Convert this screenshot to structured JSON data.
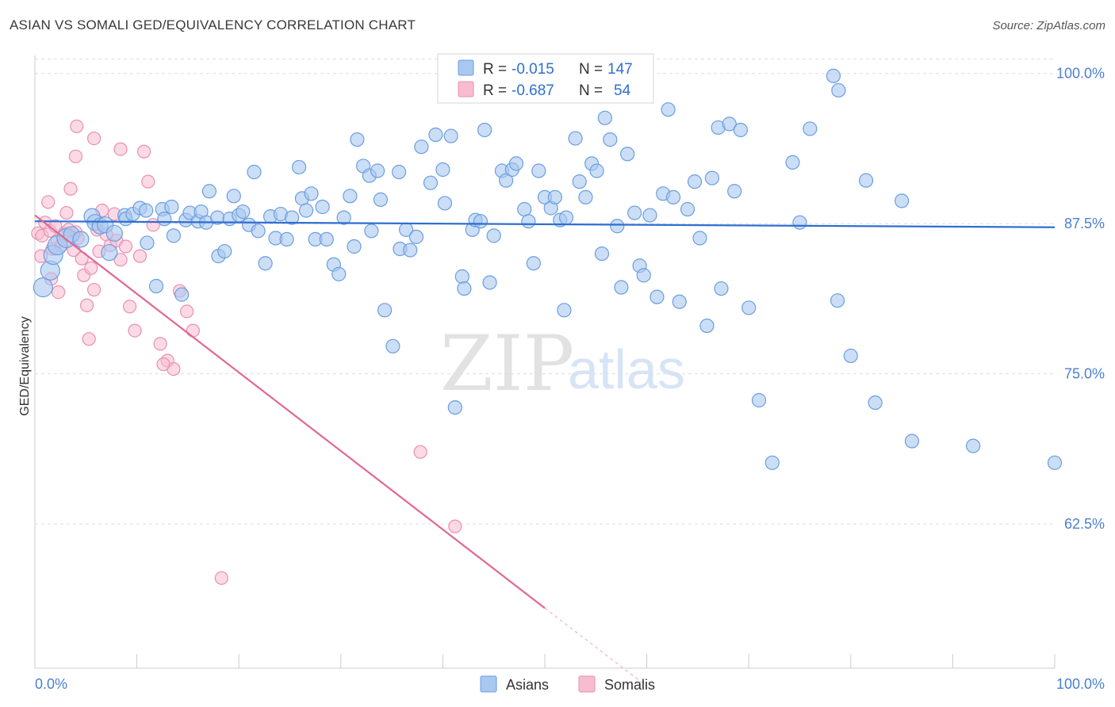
{
  "title": "ASIAN VS SOMALI GED/EQUIVALENCY CORRELATION CHART",
  "source": "Source: ZipAtlas.com",
  "watermark": {
    "zip": "ZIP",
    "atlas": "atlas"
  },
  "colors": {
    "asian_fill": "#a9c8f0",
    "asian_stroke": "#6b9ee0",
    "asian_line": "#2f6fd0",
    "somali_fill": "#f7bcd0",
    "somali_stroke": "#ea8fb0",
    "somali_line": "#e26694",
    "grid": "#dddddd",
    "axis_text": "#4a7fd4"
  },
  "legend": {
    "asian": {
      "r_label": "R =",
      "r_value": "-0.015",
      "n_label": "N =",
      "n_value": "147"
    },
    "somali": {
      "r_label": "R =",
      "r_value": "-0.687",
      "n_label": "N =",
      "n_value": "54"
    }
  },
  "chart_data": {
    "type": "scatter",
    "title": "ASIAN VS SOMALI GED/EQUIVALENCY CORRELATION CHART",
    "xlabel": "",
    "ylabel": "GED/Equivalency",
    "xlim": [
      0,
      100
    ],
    "ylim": [
      50.5,
      101.5
    ],
    "x_tick_labels": [
      "0.0%",
      "100.0%"
    ],
    "y_ticks": [
      62.5,
      75.0,
      87.5,
      100.0
    ],
    "y_tick_labels": [
      "62.5%",
      "75.0%",
      "87.5%",
      "100.0%"
    ],
    "grid": true,
    "legend_position": "top-center",
    "series": [
      {
        "name": "Asians",
        "color": "#a9c8f0",
        "trend": {
          "x": [
            0,
            100
          ],
          "y": [
            87.7,
            87.2
          ]
        },
        "points": [
          [
            0.8,
            82.2
          ],
          [
            1.5,
            83.6
          ],
          [
            1.8,
            84.9
          ],
          [
            2.2,
            85.7
          ],
          [
            3.1,
            86.3
          ],
          [
            3.6,
            86.6
          ],
          [
            4.5,
            86.2
          ],
          [
            5.6,
            88.1
          ],
          [
            5.9,
            87.6
          ],
          [
            6.4,
            87.3
          ],
          [
            6.9,
            87.4
          ],
          [
            7.3,
            85.1
          ],
          [
            7.8,
            86.7
          ],
          [
            8.8,
            88.2
          ],
          [
            8.9,
            87.9
          ],
          [
            9.6,
            88.3
          ],
          [
            10.3,
            88.8
          ],
          [
            10.9,
            88.6
          ],
          [
            11.0,
            85.9
          ],
          [
            11.9,
            82.3
          ],
          [
            12.5,
            88.7
          ],
          [
            12.7,
            87.9
          ],
          [
            13.4,
            88.9
          ],
          [
            13.6,
            86.5
          ],
          [
            14.4,
            81.6
          ],
          [
            14.8,
            87.8
          ],
          [
            15.2,
            88.4
          ],
          [
            16.0,
            87.7
          ],
          [
            16.3,
            88.5
          ],
          [
            16.8,
            87.6
          ],
          [
            17.1,
            90.2
          ],
          [
            17.9,
            88.0
          ],
          [
            18.0,
            84.8
          ],
          [
            18.6,
            85.2
          ],
          [
            19.1,
            87.9
          ],
          [
            19.5,
            89.8
          ],
          [
            20.0,
            88.2
          ],
          [
            20.4,
            88.5
          ],
          [
            21.0,
            87.4
          ],
          [
            21.5,
            91.8
          ],
          [
            21.9,
            86.9
          ],
          [
            22.6,
            84.2
          ],
          [
            23.1,
            88.1
          ],
          [
            23.6,
            86.3
          ],
          [
            24.1,
            88.3
          ],
          [
            24.7,
            86.2
          ],
          [
            25.2,
            88.0
          ],
          [
            25.9,
            92.2
          ],
          [
            26.2,
            89.6
          ],
          [
            26.6,
            88.6
          ],
          [
            27.1,
            90.0
          ],
          [
            27.5,
            86.2
          ],
          [
            28.2,
            88.9
          ],
          [
            28.6,
            86.2
          ],
          [
            29.3,
            84.1
          ],
          [
            29.8,
            83.3
          ],
          [
            30.3,
            88.0
          ],
          [
            30.9,
            89.8
          ],
          [
            31.3,
            85.6
          ],
          [
            31.6,
            94.5
          ],
          [
            32.2,
            92.3
          ],
          [
            32.8,
            91.5
          ],
          [
            33.0,
            86.9
          ],
          [
            33.6,
            91.9
          ],
          [
            33.9,
            89.5
          ],
          [
            34.3,
            80.3
          ],
          [
            35.1,
            77.3
          ],
          [
            35.7,
            91.8
          ],
          [
            35.8,
            85.4
          ],
          [
            36.4,
            87.0
          ],
          [
            36.8,
            85.3
          ],
          [
            37.4,
            86.4
          ],
          [
            37.9,
            93.9
          ],
          [
            38.8,
            90.9
          ],
          [
            39.3,
            94.9
          ],
          [
            40.0,
            92.0
          ],
          [
            40.2,
            89.2
          ],
          [
            40.8,
            94.8
          ],
          [
            41.2,
            72.2
          ],
          [
            41.9,
            83.1
          ],
          [
            42.1,
            82.1
          ],
          [
            42.9,
            87.0
          ],
          [
            43.2,
            87.8
          ],
          [
            43.7,
            87.7
          ],
          [
            44.1,
            95.3
          ],
          [
            44.6,
            82.6
          ],
          [
            45.0,
            86.5
          ],
          [
            45.8,
            91.9
          ],
          [
            46.2,
            91.1
          ],
          [
            46.8,
            92.0
          ],
          [
            47.2,
            92.5
          ],
          [
            48.0,
            88.7
          ],
          [
            48.4,
            87.7
          ],
          [
            48.9,
            84.2
          ],
          [
            49.4,
            91.9
          ],
          [
            50.0,
            89.7
          ],
          [
            50.6,
            88.8
          ],
          [
            51.0,
            89.7
          ],
          [
            51.5,
            87.8
          ],
          [
            51.9,
            80.3
          ],
          [
            52.1,
            88.0
          ],
          [
            53.0,
            94.6
          ],
          [
            53.4,
            91.0
          ],
          [
            54.0,
            89.7
          ],
          [
            54.6,
            92.5
          ],
          [
            55.1,
            91.9
          ],
          [
            55.6,
            85.0
          ],
          [
            55.9,
            96.3
          ],
          [
            56.4,
            94.5
          ],
          [
            57.1,
            87.3
          ],
          [
            57.5,
            82.2
          ],
          [
            58.1,
            93.3
          ],
          [
            58.8,
            88.4
          ],
          [
            59.3,
            84.0
          ],
          [
            59.7,
            83.2
          ],
          [
            60.3,
            88.2
          ],
          [
            61.0,
            81.4
          ],
          [
            61.6,
            90.0
          ],
          [
            62.1,
            97.0
          ],
          [
            62.6,
            89.7
          ],
          [
            63.2,
            81.0
          ],
          [
            64.0,
            88.7
          ],
          [
            64.7,
            91.0
          ],
          [
            65.2,
            86.3
          ],
          [
            65.9,
            79.0
          ],
          [
            66.4,
            91.3
          ],
          [
            67.0,
            95.5
          ],
          [
            67.3,
            82.1
          ],
          [
            68.1,
            95.8
          ],
          [
            68.6,
            90.2
          ],
          [
            69.2,
            95.3
          ],
          [
            70.0,
            80.5
          ],
          [
            71.0,
            72.8
          ],
          [
            72.3,
            67.6
          ],
          [
            74.3,
            92.6
          ],
          [
            75.0,
            87.6
          ],
          [
            76.0,
            95.4
          ],
          [
            78.3,
            99.8
          ],
          [
            78.8,
            98.6
          ],
          [
            78.7,
            81.1
          ],
          [
            80.0,
            76.5
          ],
          [
            81.5,
            91.1
          ],
          [
            82.4,
            72.6
          ],
          [
            85.0,
            89.4
          ],
          [
            86.0,
            69.4
          ],
          [
            92.0,
            69.0
          ],
          [
            100.0,
            67.6
          ]
        ]
      },
      {
        "name": "Somalis",
        "color": "#f7bcd0",
        "trend": {
          "x": [
            0,
            50
          ],
          "y": [
            88.2,
            55.5
          ],
          "dashed_extension": {
            "x": [
              50,
              60
            ],
            "y": [
              55.5,
              49.0
            ]
          }
        },
        "points": [
          [
            0.3,
            86.7
          ],
          [
            0.6,
            84.8
          ],
          [
            0.7,
            86.5
          ],
          [
            1.0,
            87.6
          ],
          [
            1.3,
            89.3
          ],
          [
            1.5,
            86.9
          ],
          [
            1.6,
            82.9
          ],
          [
            1.7,
            85.4
          ],
          [
            2.0,
            87.3
          ],
          [
            2.2,
            86.1
          ],
          [
            2.3,
            81.8
          ],
          [
            2.6,
            85.7
          ],
          [
            2.9,
            86.7
          ],
          [
            3.1,
            88.4
          ],
          [
            3.3,
            87.0
          ],
          [
            3.5,
            90.4
          ],
          [
            3.8,
            85.3
          ],
          [
            4.0,
            86.8
          ],
          [
            4.2,
            86.3
          ],
          [
            4.6,
            84.6
          ],
          [
            4.8,
            83.2
          ],
          [
            5.1,
            80.7
          ],
          [
            5.3,
            77.9
          ],
          [
            5.5,
            83.8
          ],
          [
            5.8,
            82.0
          ],
          [
            6.1,
            87.0
          ],
          [
            6.3,
            85.2
          ],
          [
            6.6,
            88.6
          ],
          [
            7.0,
            86.6
          ],
          [
            7.4,
            85.7
          ],
          [
            7.8,
            88.3
          ],
          [
            8.0,
            86.1
          ],
          [
            8.4,
            84.5
          ],
          [
            8.9,
            85.6
          ],
          [
            9.3,
            80.6
          ],
          [
            9.8,
            78.6
          ],
          [
            10.3,
            84.8
          ],
          [
            10.7,
            93.5
          ],
          [
            11.1,
            91.0
          ],
          [
            11.6,
            87.4
          ],
          [
            12.3,
            77.5
          ],
          [
            13.0,
            76.1
          ],
          [
            13.6,
            75.4
          ],
          [
            14.2,
            81.9
          ],
          [
            14.9,
            80.2
          ],
          [
            15.5,
            78.6
          ],
          [
            4.1,
            95.6
          ],
          [
            5.8,
            94.6
          ],
          [
            4.0,
            93.1
          ],
          [
            8.4,
            93.7
          ],
          [
            18.3,
            58.0
          ],
          [
            37.8,
            68.5
          ],
          [
            41.2,
            62.3
          ],
          [
            12.6,
            75.8
          ]
        ]
      }
    ]
  },
  "bottom_legend": [
    {
      "label": "Asians"
    },
    {
      "label": "Somalis"
    }
  ]
}
